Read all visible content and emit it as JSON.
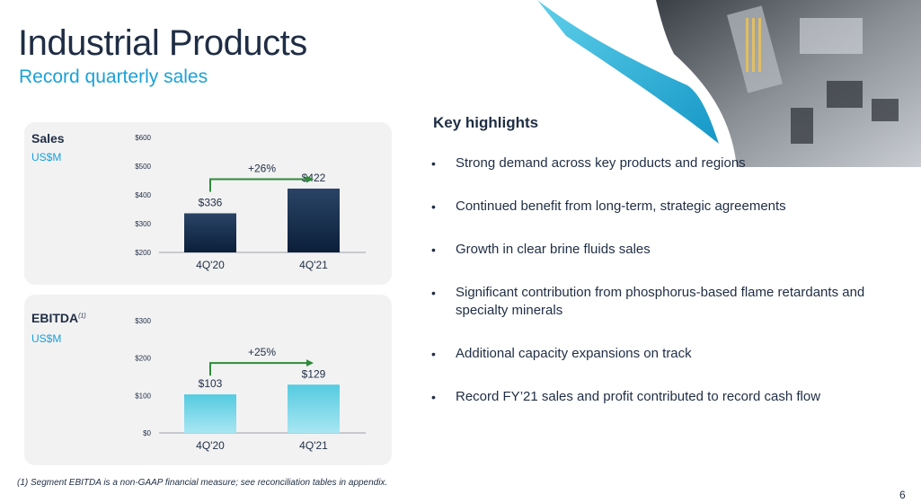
{
  "header": {
    "title": "Industrial Products",
    "subtitle": "Record quarterly sales"
  },
  "highlights": {
    "title": "Key highlights",
    "items": [
      "Strong demand across key products and regions",
      "Continued benefit from long-term, strategic agreements",
      "Growth in clear brine fluids sales",
      "Significant contribution from phosphorus-based flame retardants and specialty minerals",
      "Additional capacity expansions on track",
      "Record FY’21 sales and profit contributed to record cash flow"
    ]
  },
  "footnote": "(1) Segment EBITDA is a non-GAAP financial measure; see reconciliation tables in appendix.",
  "page_number": "6",
  "colors": {
    "accent": "#1ba1d7",
    "sales_bar_top": "#2a4466",
    "sales_bar_bottom": "#0b1f3a",
    "ebitda_bar_top": "#55cbe0",
    "ebitda_bar_bottom": "#a8e6f2",
    "arrow": "#2e8b3a"
  },
  "chart_data": [
    {
      "type": "bar",
      "title": "Sales",
      "unit": "US$M",
      "categories": [
        "4Q'20",
        "4Q'21"
      ],
      "values": [
        336,
        422
      ],
      "value_labels": [
        "$336",
        "$422"
      ],
      "ylim": [
        200,
        600
      ],
      "yticks": [
        200,
        300,
        400,
        500,
        600
      ],
      "ytick_labels": [
        "$200",
        "$300",
        "$400",
        "$500",
        "$600"
      ],
      "growth_label": "+26%"
    },
    {
      "type": "bar",
      "title": "EBITDA",
      "title_sup": "(1)",
      "unit": "US$M",
      "categories": [
        "4Q'20",
        "4Q'21"
      ],
      "values": [
        103,
        129
      ],
      "value_labels": [
        "$103",
        "$129"
      ],
      "ylim": [
        0,
        300
      ],
      "yticks": [
        0,
        100,
        200,
        300
      ],
      "ytick_labels": [
        "$0",
        "$100",
        "$200",
        "$300"
      ],
      "growth_label": "+25%"
    }
  ]
}
